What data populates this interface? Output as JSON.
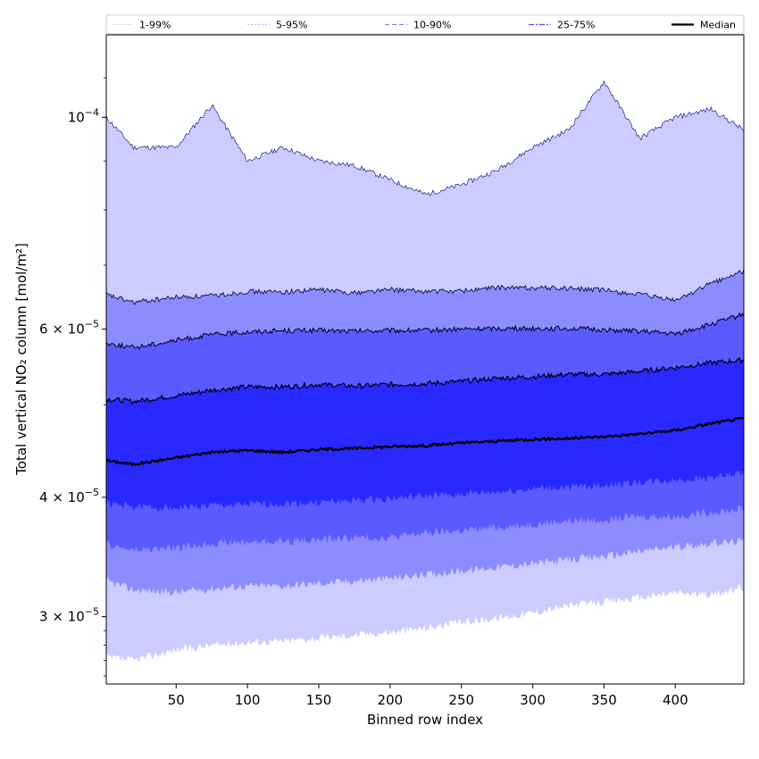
{
  "chart_data": {
    "type": "area",
    "xlabel": "Binned row index",
    "ylabel": "Total vertical NO₂ column [mol/m²]",
    "xlim": [
      1,
      448
    ],
    "ylim": [
      2.55e-05,
      0.000122
    ],
    "y_scale": "log",
    "x_ticks": [
      50,
      100,
      150,
      200,
      250,
      300,
      350,
      400
    ],
    "y_ticks": [
      {
        "value": 0.0001,
        "base": "10",
        "exp": "−4",
        "mantissa": ""
      },
      {
        "value": 6e-05,
        "mantissa": "6",
        "base": "10",
        "exp": "−5"
      },
      {
        "value": 4e-05,
        "mantissa": "4",
        "base": "10",
        "exp": "−5"
      },
      {
        "value": 3e-05,
        "mantissa": "3",
        "base": "10",
        "exp": "−5"
      }
    ],
    "legend": {
      "position": "top",
      "entries": [
        {
          "label": "1-99%",
          "color": "#ccccff",
          "style": "solid-thin"
        },
        {
          "label": "5-95%",
          "color": "#8c8cff",
          "style": "dotted"
        },
        {
          "label": "10-90%",
          "color": "#5a5aff",
          "style": "dashed"
        },
        {
          "label": "25-75%",
          "color": "#2828ff",
          "style": "dashdot"
        },
        {
          "label": "Median",
          "color": "#000000",
          "style": "solid-thick"
        }
      ]
    },
    "x": [
      1,
      20,
      50,
      75,
      100,
      125,
      150,
      175,
      200,
      225,
      250,
      275,
      300,
      325,
      350,
      375,
      400,
      425,
      448
    ],
    "bands": [
      {
        "name": "1-99%",
        "color": "#ccccff",
        "upper": [
          0.0001,
          9.3e-05,
          9.3e-05,
          0.000103,
          9e-05,
          9.3e-05,
          9e-05,
          8.9e-05,
          8.6e-05,
          8.3e-05,
          8.5e-05,
          8.8e-05,
          9.3e-05,
          9.7e-05,
          0.000109,
          9.5e-05,
          0.0001,
          0.000102,
          9.7e-05
        ],
        "lower": [
          2.72e-05,
          2.7e-05,
          2.77e-05,
          2.8e-05,
          2.82e-05,
          2.83e-05,
          2.85e-05,
          2.87e-05,
          2.89e-05,
          2.92e-05,
          2.96e-05,
          2.99e-05,
          3.03e-05,
          3.08e-05,
          3.11e-05,
          3.14e-05,
          3.18e-05,
          3.16e-05,
          3.22e-05
        ]
      },
      {
        "name": "5-95%",
        "color": "#8c8cff",
        "upper": [
          6.52e-05,
          6.4e-05,
          6.48e-05,
          6.5e-05,
          6.57e-05,
          6.56e-05,
          6.6e-05,
          6.55e-05,
          6.6e-05,
          6.57e-05,
          6.58e-05,
          6.63e-05,
          6.63e-05,
          6.62e-05,
          6.59e-05,
          6.52e-05,
          6.43e-05,
          6.7e-05,
          6.9e-05
        ],
        "lower": [
          3.27e-05,
          3.2e-05,
          3.18e-05,
          3.21e-05,
          3.23e-05,
          3.23e-05,
          3.25e-05,
          3.27e-05,
          3.29e-05,
          3.32e-05,
          3.35e-05,
          3.38e-05,
          3.41e-05,
          3.44e-05,
          3.47e-05,
          3.51e-05,
          3.55e-05,
          3.58e-05,
          3.6e-05
        ]
      },
      {
        "name": "10-90%",
        "color": "#5a5aff",
        "upper": [
          5.8e-05,
          5.74e-05,
          5.84e-05,
          5.92e-05,
          5.96e-05,
          5.98e-05,
          5.98e-05,
          5.97e-05,
          5.98e-05,
          5.98e-05,
          6e-05,
          6.01e-05,
          6.01e-05,
          6.01e-05,
          5.99e-05,
          5.97e-05,
          5.93e-05,
          6.07e-05,
          6.22e-05
        ],
        "lower": [
          3.57e-05,
          3.52e-05,
          3.54e-05,
          3.58e-05,
          3.59e-05,
          3.6e-05,
          3.61e-05,
          3.63e-05,
          3.63e-05,
          3.67e-05,
          3.69e-05,
          3.72e-05,
          3.75e-05,
          3.78e-05,
          3.79e-05,
          3.82e-05,
          3.82e-05,
          3.86e-05,
          3.89e-05
        ]
      },
      {
        "name": "25-75%",
        "color": "#2828ff",
        "upper": [
          5.07e-05,
          5.04e-05,
          5.11e-05,
          5.18e-05,
          5.22e-05,
          5.22e-05,
          5.25e-05,
          5.23e-05,
          5.25e-05,
          5.26e-05,
          5.29e-05,
          5.33e-05,
          5.35e-05,
          5.38e-05,
          5.38e-05,
          5.42e-05,
          5.47e-05,
          5.53e-05,
          5.57e-05
        ],
        "lower": [
          3.94e-05,
          3.91e-05,
          3.9e-05,
          3.92e-05,
          3.93e-05,
          3.94e-05,
          3.95e-05,
          3.97e-05,
          3.99e-05,
          4.01e-05,
          4.03e-05,
          4.05e-05,
          4.08e-05,
          4.1e-05,
          4.12e-05,
          4.15e-05,
          4.17e-05,
          4.2e-05,
          4.23e-05
        ]
      }
    ],
    "series": [
      {
        "name": "Median",
        "color": "#000000",
        "values": [
          4.37e-05,
          4.33e-05,
          4.4e-05,
          4.46e-05,
          4.48e-05,
          4.46e-05,
          4.49e-05,
          4.5e-05,
          4.52e-05,
          4.53e-05,
          4.56e-05,
          4.58e-05,
          4.6e-05,
          4.61e-05,
          4.63e-05,
          4.66e-05,
          4.7e-05,
          4.78e-05,
          4.84e-05
        ]
      }
    ]
  }
}
